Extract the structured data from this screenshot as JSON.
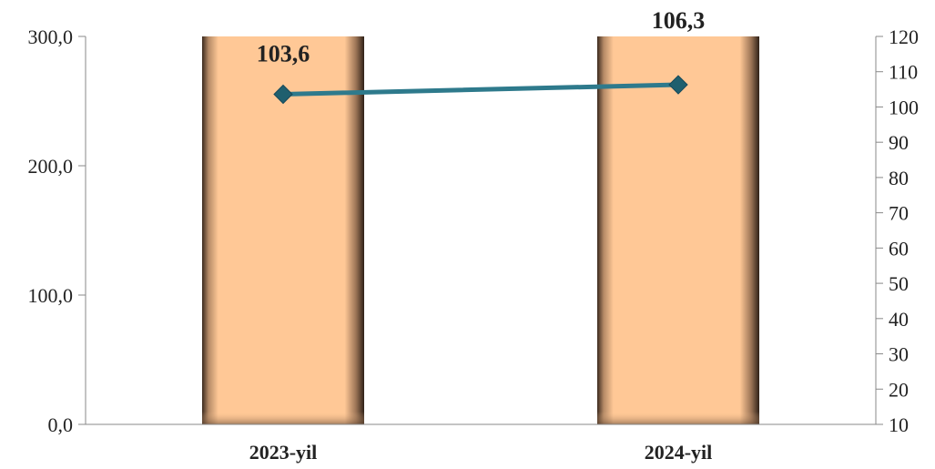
{
  "chart_data": {
    "type": "bar",
    "categories": [
      "2023-yil",
      "2024-yil"
    ],
    "series": [
      {
        "type": "bar",
        "axis": "left",
        "values": [
          300.0,
          300.0
        ]
      },
      {
        "type": "line",
        "axis": "right",
        "values": [
          103.6,
          106.3
        ],
        "data_labels": [
          "103,6",
          "106,3"
        ]
      }
    ],
    "left_axis": {
      "ylim": [
        0,
        300
      ],
      "ticks": [
        "0,0",
        "100,0",
        "200,0",
        "300,0"
      ]
    },
    "right_axis": {
      "ylim": [
        10,
        120
      ],
      "ticks": [
        "10",
        "20",
        "30",
        "40",
        "50",
        "60",
        "70",
        "80",
        "90",
        "100",
        "110",
        "120"
      ]
    },
    "grid": false,
    "legend": "none",
    "colors": {
      "bar_fill": "#FFC896",
      "bar_edge": "#4a3526",
      "line": "#2E7A8C",
      "marker": "#1F5F6E",
      "axis": "#888888"
    }
  }
}
